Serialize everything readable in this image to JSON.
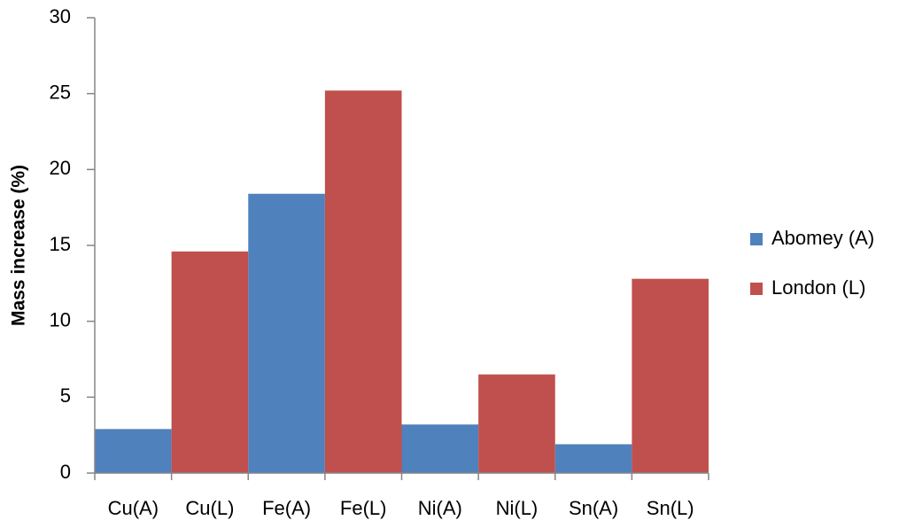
{
  "chart_data": {
    "type": "bar",
    "y_label": "Mass increase (%)",
    "categories": [
      "Cu(A)",
      "Cu(L)",
      "Fe(A)",
      "Fe(L)",
      "Ni(A)",
      "Ni(L)",
      "Sn(A)",
      "Sn(L)"
    ],
    "series": [
      {
        "name": "Abomey (A)",
        "color": "#4f81bd",
        "values": [
          2.9,
          null,
          18.4,
          null,
          3.2,
          null,
          1.9,
          null
        ]
      },
      {
        "name": "London (L)",
        "color": "#c0504d",
        "values": [
          null,
          14.6,
          null,
          25.2,
          null,
          6.5,
          null,
          12.8
        ]
      }
    ],
    "ylim": [
      0,
      30
    ],
    "yticks": [
      0,
      5,
      10,
      15,
      20,
      25,
      30
    ],
    "grid": false,
    "legend": "right"
  }
}
